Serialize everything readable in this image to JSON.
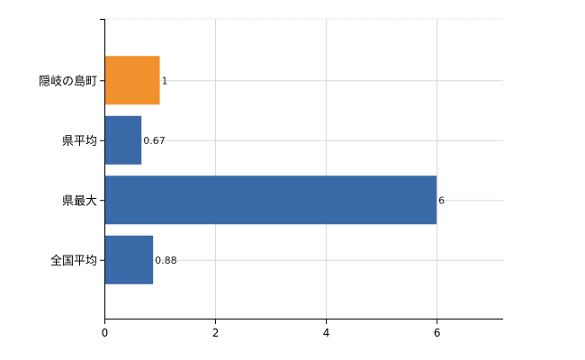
{
  "chart_data": {
    "type": "bar",
    "orientation": "horizontal",
    "categories": [
      "隠岐の島町",
      "県平均",
      "県最大",
      "全国平均"
    ],
    "values": [
      1,
      0.67,
      6,
      0.88
    ],
    "value_labels": [
      "1",
      "0.67",
      "6",
      "0.88"
    ],
    "colors": [
      "#f0912e",
      "#3a69a8",
      "#3a69a8",
      "#3a69a8"
    ],
    "xlim": [
      0,
      7.2
    ],
    "xticks": [
      0,
      2,
      4,
      6
    ],
    "xtick_labels": [
      "0",
      "2",
      "4",
      "6"
    ],
    "grid": true,
    "title": "",
    "xlabel": "",
    "ylabel": ""
  }
}
